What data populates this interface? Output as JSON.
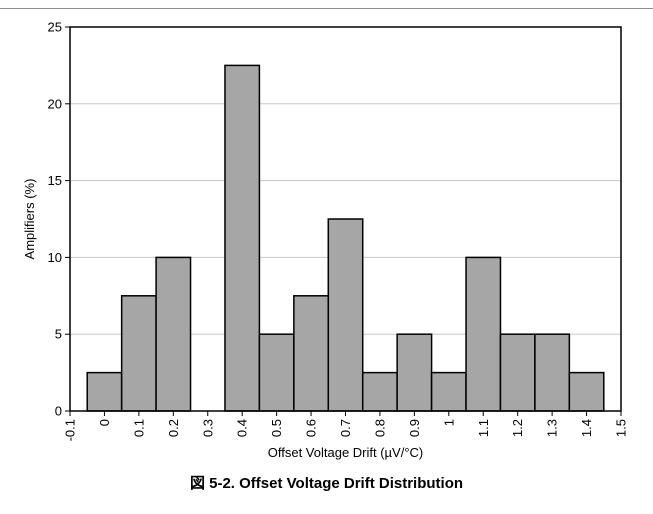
{
  "chart_data": {
    "type": "bar",
    "xlabel": "Offset Voltage Drift (µV/°C)",
    "ylabel": "Amplifiers (%)",
    "x_tick_labels": [
      "-0.1",
      "0",
      "0.1",
      "0.2",
      "0.3",
      "0.4",
      "0.5",
      "0.6",
      "0.7",
      "0.8",
      "0.9",
      "1",
      "1.1",
      "1.2",
      "1.3",
      "1.4",
      "1.5"
    ],
    "y_tick_labels": [
      "0",
      "5",
      "10",
      "15",
      "20",
      "25"
    ],
    "xlim": [
      -0.1,
      1.5
    ],
    "ylim": [
      0,
      25
    ],
    "y_ticks": [
      0,
      5,
      10,
      15,
      20,
      25
    ],
    "bar_width": 0.1,
    "bins": [
      {
        "center": 0.0,
        "value": 2.5
      },
      {
        "center": 0.1,
        "value": 7.5
      },
      {
        "center": 0.2,
        "value": 10
      },
      {
        "center": 0.3,
        "value": 0
      },
      {
        "center": 0.4,
        "value": 22.5
      },
      {
        "center": 0.5,
        "value": 5
      },
      {
        "center": 0.6,
        "value": 7.5
      },
      {
        "center": 0.7,
        "value": 12.5
      },
      {
        "center": 0.8,
        "value": 2.5
      },
      {
        "center": 0.9,
        "value": 5
      },
      {
        "center": 1.0,
        "value": 2.5
      },
      {
        "center": 1.1,
        "value": 10
      },
      {
        "center": 1.2,
        "value": 5
      },
      {
        "center": 1.3,
        "value": 5
      },
      {
        "center": 1.4,
        "value": 2.5
      }
    ],
    "grid": "horizontal",
    "bar_color": "#a6a6a6",
    "bar_stroke": "#000000",
    "grid_color": "#c8c8c8"
  },
  "caption": "図 5-2. Offset Voltage Drift Distribution"
}
